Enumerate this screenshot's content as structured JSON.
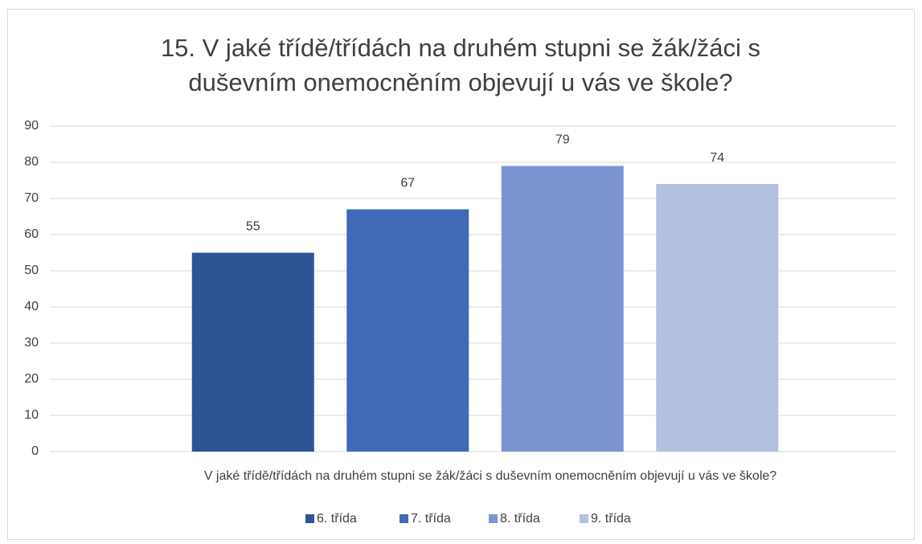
{
  "chart_data": {
    "type": "bar",
    "title": "15. V jaké třídě/třídách na druhém stupni se žák/žáci s duševním onemocněním objevují u vás ve škole?",
    "categories": [
      "V jaké třídě/třídách na druhém stupni se žák/žáci s duševním onemocněním objevují u vás ve škole?"
    ],
    "series": [
      {
        "name": "6. třída",
        "color": "#2f5496",
        "values": [
          55
        ]
      },
      {
        "name": "7. třída",
        "color": "#4169b8",
        "values": [
          67
        ]
      },
      {
        "name": "8. třída",
        "color": "#7c94d0",
        "values": [
          79
        ]
      },
      {
        "name": "9. třída",
        "color": "#b4c0e0",
        "values": [
          74
        ]
      }
    ],
    "ylim": [
      0,
      90
    ],
    "yticks": [
      0,
      10,
      20,
      30,
      40,
      50,
      60,
      70,
      80,
      90
    ],
    "grid": true,
    "legend": "bottom"
  }
}
